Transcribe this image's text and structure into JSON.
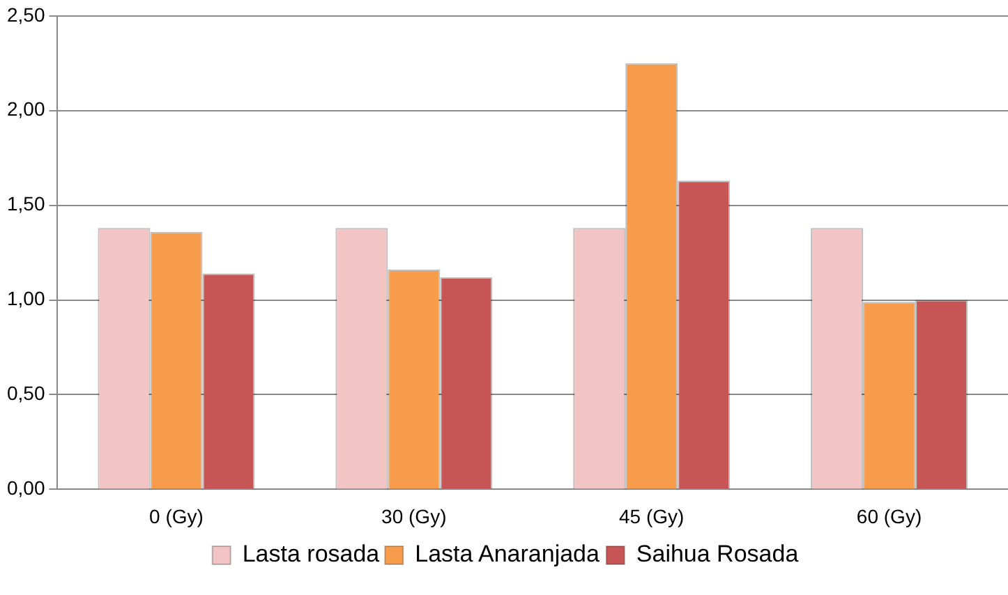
{
  "chart_data": {
    "type": "bar",
    "categories": [
      "0 (Gy)",
      "30 (Gy)",
      "45 (Gy)",
      "60 (Gy)"
    ],
    "series": [
      {
        "name": "Lasta rosada",
        "color": "#f2c4c4",
        "values": [
          1.38,
          1.38,
          1.38,
          1.38
        ]
      },
      {
        "name": "Lasta Anaranjada",
        "color": "#f79c4a",
        "values": [
          1.36,
          1.16,
          2.25,
          0.99
        ]
      },
      {
        "name": "Saihua Rosada",
        "color": "#c85555",
        "values": [
          1.14,
          1.12,
          1.63,
          1.0
        ]
      }
    ],
    "ylim": [
      0,
      2.5
    ],
    "yticks": [
      {
        "value": 0,
        "label": "0,00"
      },
      {
        "value": 0.5,
        "label": "0,50"
      },
      {
        "value": 1,
        "label": "1,00"
      },
      {
        "value": 1.5,
        "label": "1,50"
      },
      {
        "value": 2,
        "label": "2,00"
      },
      {
        "value": 2.5,
        "label": "2,50"
      }
    ],
    "grid": "y",
    "legend": "bottom"
  }
}
